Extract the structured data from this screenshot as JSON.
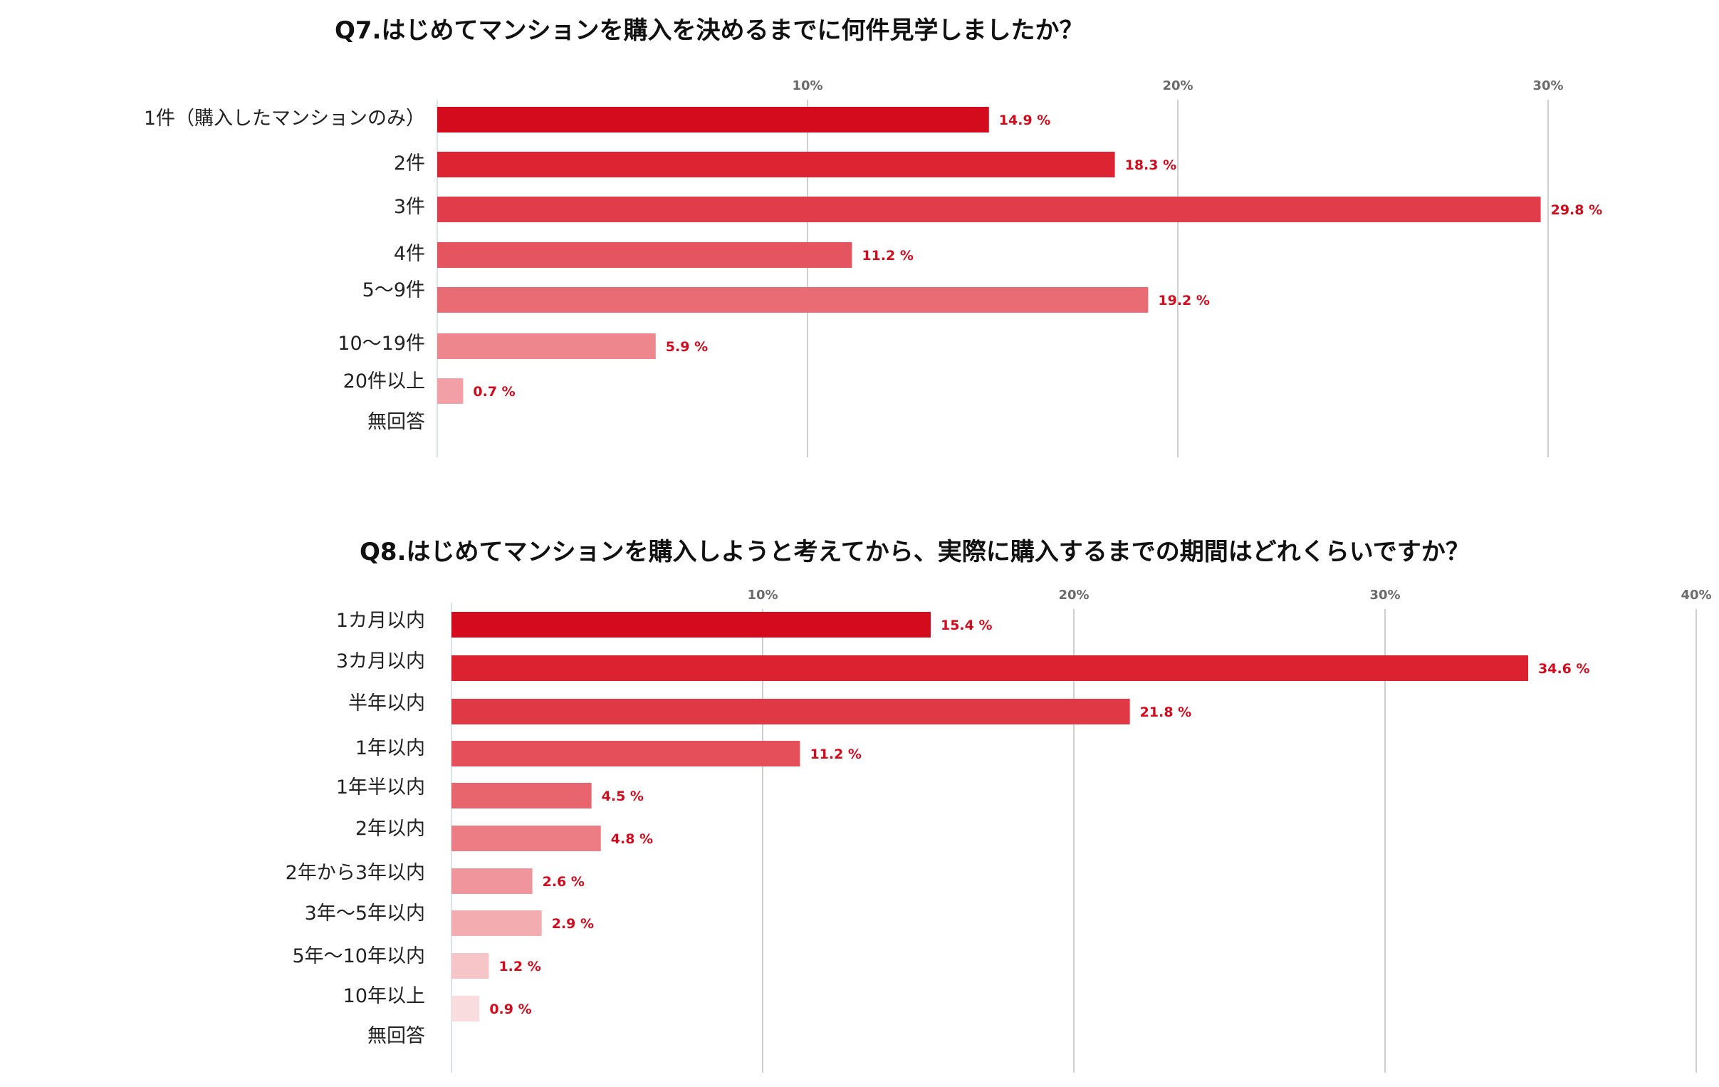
{
  "chart_data": [
    {
      "type": "bar",
      "orientation": "horizontal",
      "title": "Q7.はじめてマンションを購入を決めるまでに何件見学しましたか？",
      "categories": [
        "1件（購入したマンションのみ）",
        "2件",
        "3件",
        "4件",
        "5〜9件",
        "10〜19件",
        "20件以上",
        "無回答"
      ],
      "values": [
        14.9,
        18.3,
        29.8,
        11.2,
        19.2,
        5.9,
        0.7,
        null
      ],
      "value_labels": [
        "14.9 %",
        "18.3 %",
        "29.8 %",
        "11.2 %",
        "19.2 %",
        "5.9 %",
        "0.7 %",
        ""
      ],
      "colors": [
        "#d40b1c",
        "#dd2433",
        "#e13c49",
        "#e55560",
        "#e96c75",
        "#ee868d",
        "#f2a0a5",
        "#f6bcc0"
      ],
      "xlim": [
        0,
        31
      ],
      "ticks": [
        10,
        20,
        30
      ],
      "tick_labels": [
        "10%",
        "20%",
        "30%"
      ],
      "grid": true,
      "legend": "none"
    },
    {
      "type": "bar",
      "orientation": "horizontal",
      "title": "Q8.はじめてマンションを購入しようと考えてから、実際に購入するまでの期間はどれくらいですか？",
      "categories": [
        "1カ月以内",
        "3カ月以内",
        "半年以内",
        "1年以内",
        "1年半以内",
        "2年以内",
        "2年から3年以内",
        "3年〜5年以内",
        "5年〜10年以内",
        "10年以上",
        "無回答"
      ],
      "values": [
        15.4,
        34.6,
        21.8,
        11.2,
        4.5,
        4.8,
        2.6,
        2.9,
        1.2,
        0.9,
        null
      ],
      "value_labels": [
        "15.4 %",
        "34.6 %",
        "21.8 %",
        "11.2 %",
        "4.5 %",
        "4.8 %",
        "2.6 %",
        "2.9 %",
        "1.2 %",
        "0.9 %",
        ""
      ],
      "colors": [
        "#d40b1c",
        "#dc2231",
        "#e03844",
        "#e44f5a",
        "#e8656e",
        "#ec7d84",
        "#ef959b",
        "#f3adb1",
        "#f6c5c8",
        "#f9dcde",
        "#fbe9ea"
      ],
      "xlim": [
        0,
        40
      ],
      "ticks": [
        10,
        20,
        30,
        40
      ],
      "tick_labels": [
        "10%",
        "20%",
        "30%",
        "40%"
      ],
      "grid": true,
      "legend": "none"
    }
  ]
}
